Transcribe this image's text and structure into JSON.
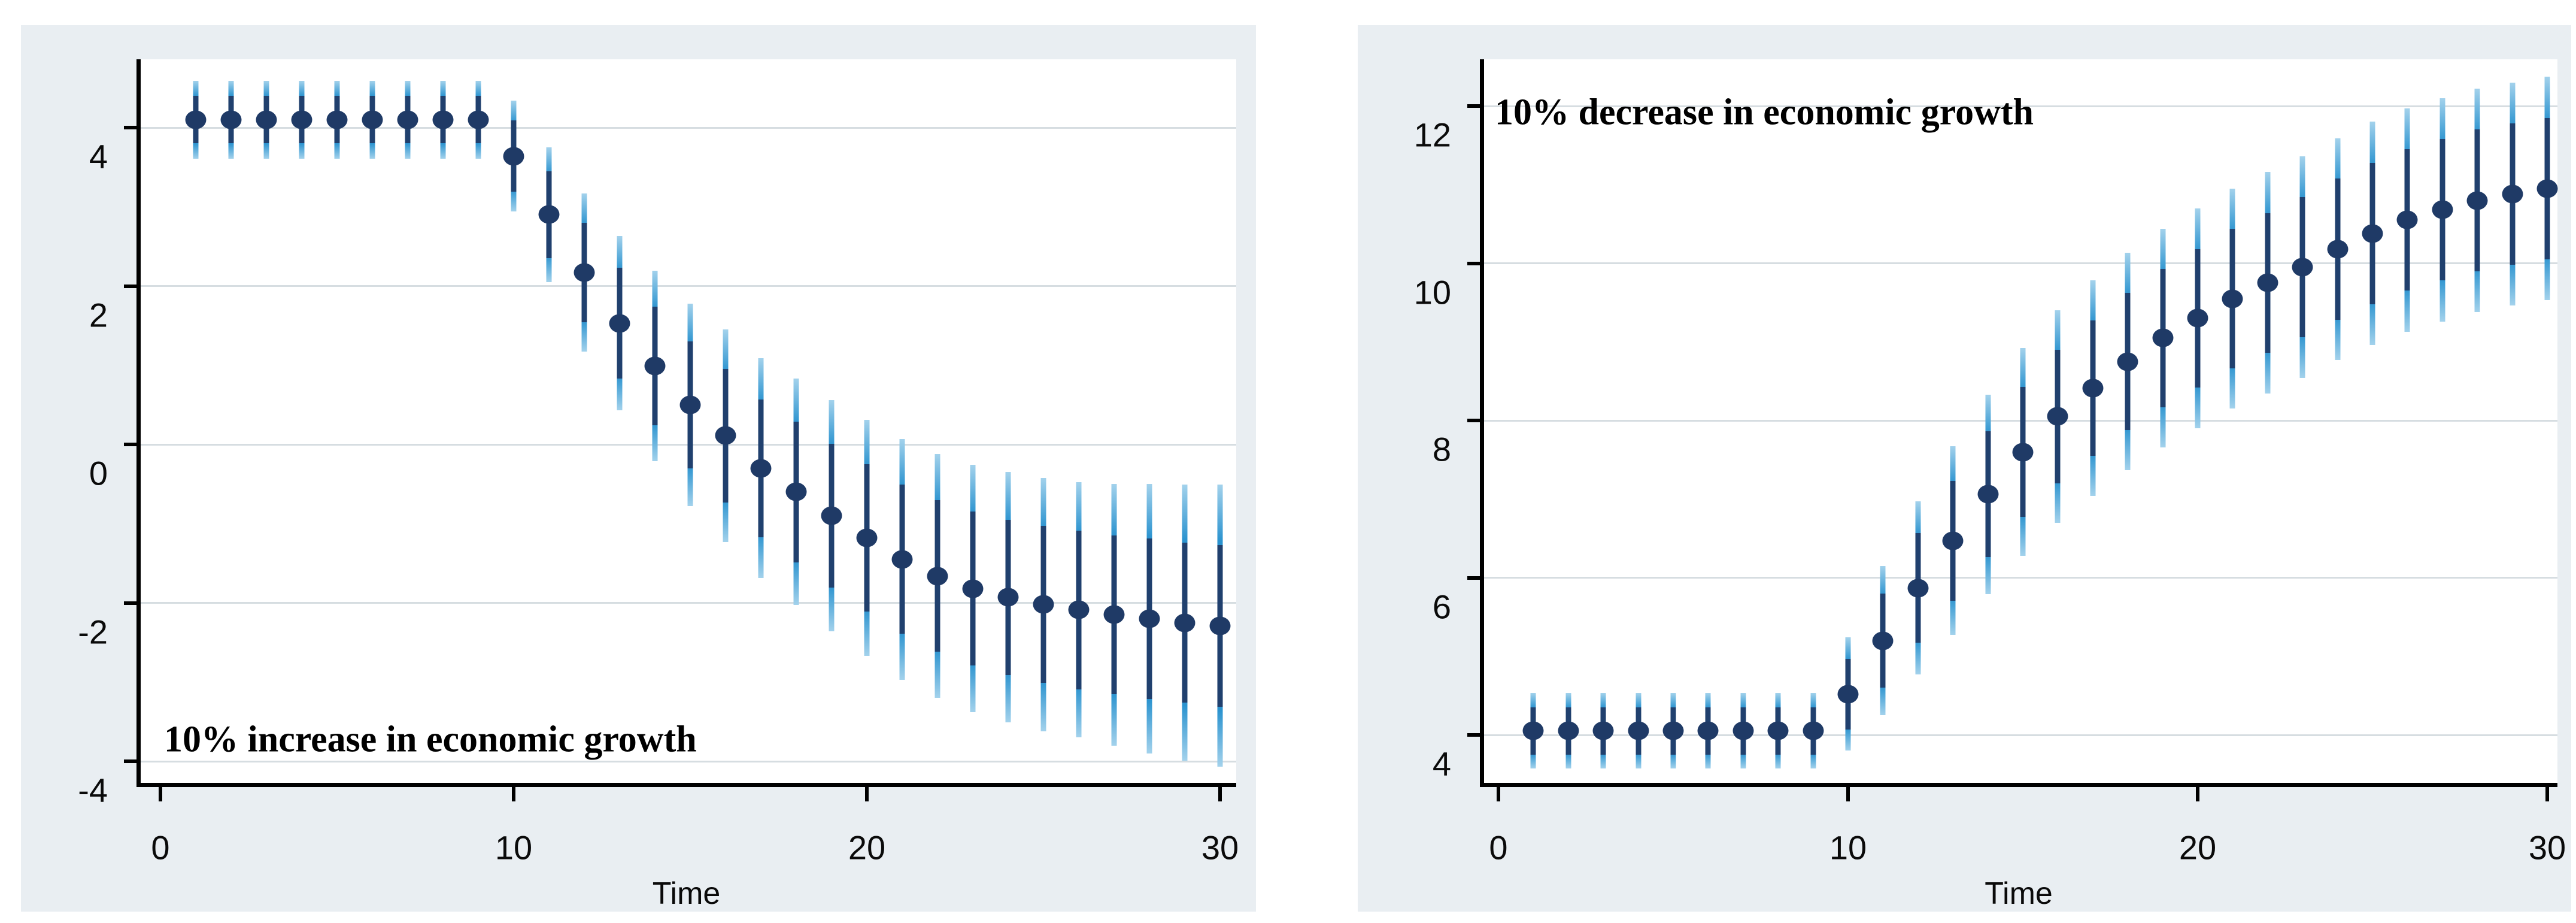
{
  "figure": {
    "xlabel": "Time",
    "panels": [
      "10% increase in economic growth",
      "10% decrease in economic growth"
    ]
  },
  "colors": {
    "panel_bg": "#e9eef2",
    "plot_bg": "#ffffff",
    "gridline": "#d6dde1",
    "axis": "#000000",
    "point_navy": "#1f3a66",
    "ci_inner_navy": "#20406e",
    "ci_outer_blue": "#2b93cf",
    "ci_outer_tip": "#a3d2ec",
    "text": "#0a0a0a"
  },
  "chart_data": [
    {
      "type": "scatter",
      "annotation": "10% increase in economic growth",
      "annotation_corner": "bottom-left",
      "xlabel": "Time",
      "grid": true,
      "legend": "none",
      "xlim": [
        -0.68,
        30.46
      ],
      "ylim": [
        -4.33,
        4.86
      ],
      "xticks": [
        {
          "v": 0,
          "label": "0"
        },
        {
          "v": 10,
          "label": "10"
        },
        {
          "v": 20,
          "label": "20"
        },
        {
          "v": 30,
          "label": "30"
        }
      ],
      "yticks": [
        {
          "v": 4,
          "label": "4"
        },
        {
          "v": 2,
          "label": "2"
        },
        {
          "v": 0,
          "label": "0"
        },
        {
          "v": -2,
          "label": "-2"
        },
        {
          "v": -4,
          "label": "-4"
        }
      ],
      "series": {
        "x": [
          1,
          2,
          3,
          4,
          5,
          6,
          7,
          8,
          9,
          10,
          11,
          12,
          13,
          14,
          15,
          16,
          17,
          18,
          19,
          20,
          21,
          22,
          23,
          24,
          25,
          26,
          27,
          28,
          29,
          30
        ],
        "y": [
          4.1,
          4.1,
          4.1,
          4.1,
          4.1,
          4.1,
          4.1,
          4.1,
          4.1,
          3.64,
          2.9,
          2.17,
          1.53,
          0.99,
          0.5,
          0.11,
          -0.3,
          -0.6,
          -0.9,
          -1.18,
          -1.45,
          -1.66,
          -1.82,
          -1.93,
          -2.02,
          -2.09,
          -2.15,
          -2.2,
          -2.25,
          -2.29
        ],
        "ci_inner_low": [
          3.8,
          3.8,
          3.8,
          3.8,
          3.8,
          3.8,
          3.8,
          3.8,
          3.8,
          3.19,
          2.35,
          1.54,
          0.83,
          0.24,
          -0.3,
          -0.73,
          -1.17,
          -1.49,
          -1.81,
          -2.11,
          -2.39,
          -2.62,
          -2.79,
          -2.91,
          -3.01,
          -3.09,
          -3.15,
          -3.21,
          -3.26,
          -3.31
        ],
        "ci_inner_high": [
          4.4,
          4.4,
          4.4,
          4.4,
          4.4,
          4.4,
          4.4,
          4.4,
          4.4,
          4.09,
          3.45,
          2.8,
          2.23,
          1.74,
          1.3,
          0.95,
          0.57,
          0.29,
          0.01,
          -0.25,
          -0.51,
          -0.7,
          -0.85,
          -0.95,
          -1.03,
          -1.09,
          -1.15,
          -1.19,
          -1.24,
          -1.27
        ],
        "ci_outer_low": [
          3.61,
          3.61,
          3.61,
          3.61,
          3.61,
          3.61,
          3.61,
          3.61,
          3.61,
          2.94,
          2.05,
          1.17,
          0.43,
          -0.21,
          -0.78,
          -1.23,
          -1.69,
          -2.03,
          -2.36,
          -2.67,
          -2.97,
          -3.2,
          -3.38,
          -3.51,
          -3.62,
          -3.7,
          -3.8,
          -3.9,
          -3.99,
          -4.07
        ],
        "ci_outer_high": [
          4.59,
          4.59,
          4.59,
          4.59,
          4.59,
          4.59,
          4.59,
          4.59,
          4.59,
          4.34,
          3.75,
          3.17,
          2.63,
          2.19,
          1.78,
          1.45,
          1.09,
          0.83,
          0.56,
          0.31,
          0.07,
          -0.12,
          -0.26,
          -0.35,
          -0.42,
          -0.48,
          -0.5,
          -0.5,
          -0.51,
          -0.51
        ]
      }
    },
    {
      "type": "scatter",
      "annotation": "10% decrease in economic growth",
      "annotation_corner": "top-left",
      "xlabel": "Time",
      "grid": true,
      "legend": "none",
      "xlim": [
        -0.53,
        30.29
      ],
      "ylim": [
        3.34,
        12.59
      ],
      "xticks": [
        {
          "v": 0,
          "label": "0"
        },
        {
          "v": 10,
          "label": "10"
        },
        {
          "v": 20,
          "label": "20"
        },
        {
          "v": 30,
          "label": "30"
        }
      ],
      "yticks": [
        {
          "v": 12,
          "label": "12"
        },
        {
          "v": 10,
          "label": "10"
        },
        {
          "v": 8,
          "label": "8"
        },
        {
          "v": 6,
          "label": "6"
        },
        {
          "v": 4,
          "label": "4"
        }
      ],
      "series": {
        "x": [
          1,
          2,
          3,
          4,
          5,
          6,
          7,
          8,
          9,
          10,
          11,
          12,
          13,
          14,
          15,
          16,
          17,
          18,
          19,
          20,
          21,
          22,
          23,
          24,
          25,
          26,
          27,
          28,
          29,
          30
        ],
        "y": [
          4.05,
          4.05,
          4.05,
          4.05,
          4.05,
          4.05,
          4.05,
          4.05,
          4.05,
          4.52,
          5.2,
          5.87,
          6.47,
          7.06,
          7.6,
          8.05,
          8.41,
          8.75,
          9.05,
          9.3,
          9.55,
          9.75,
          9.95,
          10.18,
          10.38,
          10.55,
          10.68,
          10.8,
          10.88,
          10.95
        ],
        "ci_inner_low": [
          3.75,
          3.75,
          3.75,
          3.75,
          3.75,
          3.75,
          3.75,
          3.75,
          3.75,
          4.07,
          4.6,
          5.17,
          5.71,
          6.26,
          6.77,
          7.2,
          7.55,
          7.88,
          8.17,
          8.42,
          8.66,
          8.86,
          9.06,
          9.28,
          9.48,
          9.65,
          9.78,
          9.9,
          9.98,
          10.05
        ],
        "ci_inner_high": [
          4.35,
          4.35,
          4.35,
          4.35,
          4.35,
          4.35,
          4.35,
          4.35,
          4.35,
          4.97,
          5.8,
          6.57,
          7.23,
          7.86,
          8.43,
          8.9,
          9.27,
          9.62,
          9.93,
          10.18,
          10.44,
          10.64,
          10.84,
          11.08,
          11.28,
          11.45,
          11.58,
          11.7,
          11.78,
          11.85
        ],
        "ci_outer_low": [
          3.57,
          3.57,
          3.57,
          3.57,
          3.57,
          3.57,
          3.57,
          3.57,
          3.57,
          3.8,
          4.25,
          4.77,
          5.27,
          5.79,
          6.28,
          6.7,
          7.04,
          7.37,
          7.66,
          7.9,
          8.15,
          8.34,
          8.54,
          8.77,
          8.96,
          9.13,
          9.26,
          9.38,
          9.46,
          9.53
        ],
        "ci_outer_high": [
          4.53,
          4.53,
          4.53,
          4.53,
          4.53,
          4.53,
          4.53,
          4.53,
          4.53,
          5.24,
          6.15,
          6.97,
          7.67,
          8.33,
          8.92,
          9.4,
          9.78,
          10.13,
          10.44,
          10.7,
          10.95,
          11.16,
          11.36,
          11.59,
          11.8,
          11.97,
          12.1,
          12.22,
          12.3,
          12.37
        ]
      }
    }
  ]
}
